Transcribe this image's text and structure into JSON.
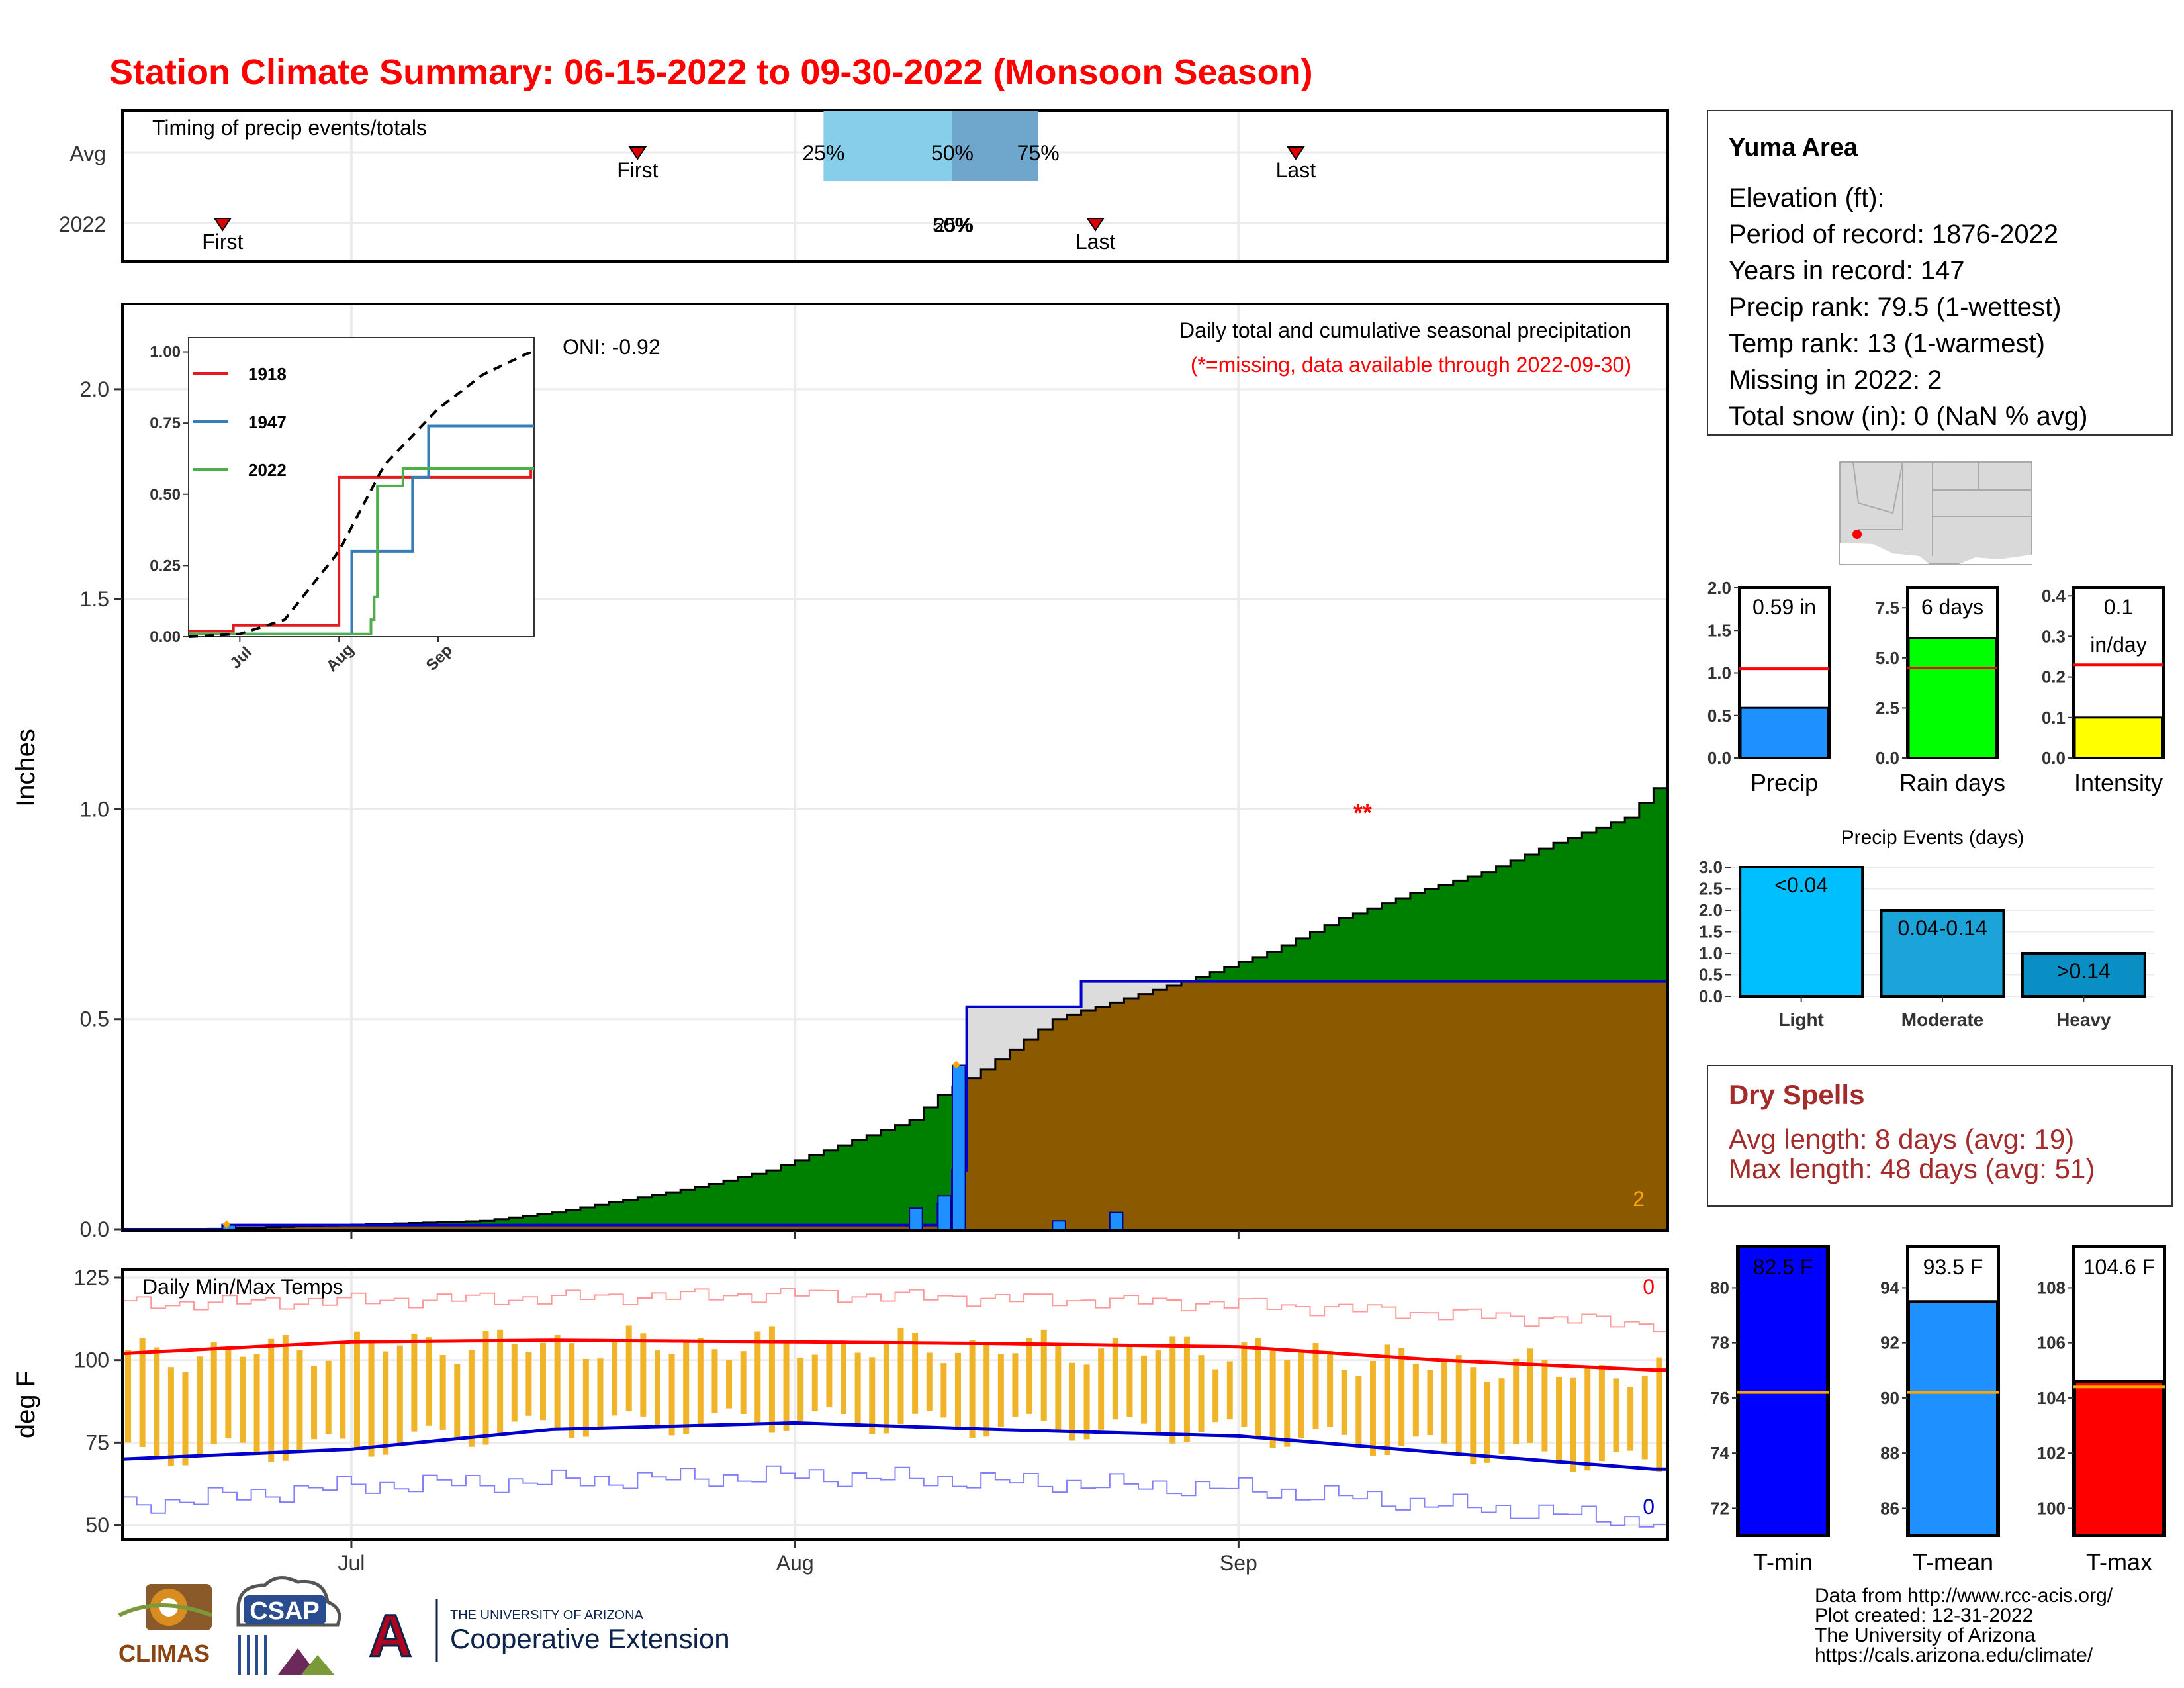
{
  "title": "Station Climate Summary: 06-15-2022 to 09-30-2022 (Monsoon Season)",
  "timing_panel": {
    "label": "Timing of precip events/totals",
    "rows": [
      "Avg",
      "2022"
    ],
    "marker_first": "First",
    "marker_last": "Last",
    "pct_labels": [
      "25%",
      "50%",
      "75%"
    ],
    "overlap_label_2022": "50%",
    "pct_2022_label": "25%",
    "avg_first": "2022-07-21",
    "avg_last": "2022-09-05",
    "avg_q25": "2022-08-03",
    "avg_q50": "2022-08-12",
    "avg_q75": "2022-08-18",
    "y2022_first": "2022-06-22",
    "y2022_last": "2022-08-22",
    "y2022_q": "2022-08-12"
  },
  "main_panel": {
    "oni": "ONI: -0.92",
    "subtitle": "Daily total and cumulative seasonal precipitation",
    "missing_note": "(*=missing, data available through 2022-09-30)",
    "ylabel": "Inches",
    "ytick_labels": [
      "0.0",
      "0.5",
      "1.0",
      "1.5",
      "2.0"
    ],
    "missing_marker": "**",
    "missing_count": "2",
    "colors": {
      "avg_fill": "#8b5a00",
      "above_fill": "#008000",
      "obs_fill": "#dcdcdc",
      "obs_line": "#0000cd",
      "daily_bar": "#1e90ff",
      "missing": "#ff0000",
      "missing_count": "#ffa500"
    }
  },
  "inset": {
    "legend": [
      "1918",
      "1947",
      "2022"
    ],
    "legend_colors": [
      "#e41a1c",
      "#377eb8",
      "#4daf4a"
    ],
    "ytick_labels": [
      "0.00",
      "0.25",
      "0.50",
      "0.75",
      "1.00"
    ],
    "xtick_labels": [
      "Jul",
      "Aug",
      "Sep"
    ]
  },
  "temp_panel": {
    "label": "Daily Min/Max Temps",
    "ylabel": "deg F",
    "ytick_labels": [
      "50",
      "75",
      "100",
      "125"
    ],
    "max_missing": "0",
    "min_missing": "0",
    "colors": {
      "range_bar": "#f0b429",
      "avg_max": "#ff0000",
      "avg_min": "#0000cd",
      "record_max": "#ff9999",
      "record_min": "#8080ff"
    }
  },
  "x_axis": {
    "labels": [
      "Jul",
      "Aug",
      "Sep"
    ]
  },
  "station": {
    "name": "Yuma Area",
    "lines": [
      "Elevation (ft):",
      "Period of record: 1876-2022",
      "Years in record: 147",
      "Precip rank: 79.5 (1-wettest)",
      "Temp rank: 13 (1-warmest)",
      "Missing in 2022: 2",
      "Total snow (in): 0 (NaN % avg)"
    ]
  },
  "summary_bars": [
    {
      "label": "Precip",
      "value_text": "0.59 in",
      "value": 0.59,
      "avg": 1.05,
      "ymax": 2.0,
      "ticks": [
        "0.0",
        "0.5",
        "1.0",
        "1.5",
        "2.0"
      ],
      "color": "#1e90ff"
    },
    {
      "label": "Rain days",
      "value_text": "6 days",
      "value": 6,
      "avg": 4.5,
      "ymax": 8.5,
      "ticks": [
        "0.0",
        "2.5",
        "5.0",
        "7.5"
      ],
      "color": "#00ff00"
    },
    {
      "label": "Intensity",
      "value_text": "0.1",
      "value_text2": "in/day",
      "value": 0.1,
      "avg": 0.23,
      "ymax": 0.42,
      "ticks": [
        "0.0",
        "0.1",
        "0.2",
        "0.3",
        "0.4"
      ],
      "color": "#ffff00"
    }
  ],
  "events_chart": {
    "title": "Precip Events (days)",
    "categories": [
      "Light",
      "Moderate",
      "Heavy"
    ],
    "bar_labels": [
      "<0.04",
      "0.04-0.14",
      ">0.14"
    ],
    "values": [
      3,
      2,
      1
    ],
    "ticks": [
      "0.0",
      "0.5",
      "1.0",
      "1.5",
      "2.0",
      "2.5",
      "3.0"
    ],
    "colors": [
      "#00bfff",
      "#1ca3d9",
      "#0a8fc4"
    ]
  },
  "dry_spells": {
    "title": "Dry Spells",
    "avg_line": "Avg length: 8 days (avg: 19)",
    "max_line": "Max length: 48 days (avg: 51)"
  },
  "temp_bars": [
    {
      "label": "T-min",
      "value_text": "82.5 F",
      "value": 82.5,
      "avg": 76.2,
      "ylim": [
        71,
        81.5
      ],
      "ticks": [
        "72",
        "74",
        "76",
        "78",
        "80"
      ],
      "color": "#0000ff"
    },
    {
      "label": "T-mean",
      "value_text": "93.5 F",
      "value": 93.5,
      "avg": 90.2,
      "ylim": [
        85,
        95.5
      ],
      "ticks": [
        "86",
        "88",
        "90",
        "92",
        "94"
      ],
      "color": "#1e90ff"
    },
    {
      "label": "T-max",
      "value_text": "104.6 F",
      "value": 104.6,
      "avg": 104.4,
      "ylim": [
        99,
        109.5
      ],
      "ticks": [
        "100",
        "102",
        "104",
        "106",
        "108"
      ],
      "color": "#ff0000"
    }
  ],
  "footer": {
    "lines": [
      "Data from http://www.rcc-acis.org/",
      "Plot created: 12-31-2022",
      "The University of Arizona",
      "https://cals.arizona.edu/climate/"
    ],
    "logo_climas": "CLIMAS",
    "logo_csap": "CSAP",
    "logo_ua_small": "THE UNIVERSITY OF ARIZONA",
    "logo_ua_big": "Cooperative Extension",
    "logo_ua_letter": "A"
  },
  "chart_data": [
    {
      "type": "area",
      "title": "Daily total and cumulative seasonal precipitation",
      "ylabel": "Inches",
      "ylim": [
        0,
        2.2
      ],
      "x_range": [
        "2022-06-15",
        "2022-09-30"
      ],
      "series": [
        {
          "name": "Average cumulative",
          "x": [
            "2022-06-15",
            "2022-06-20",
            "2022-06-25",
            "2022-06-30",
            "2022-07-05",
            "2022-07-10",
            "2022-07-15",
            "2022-07-20",
            "2022-07-25",
            "2022-07-30",
            "2022-08-04",
            "2022-08-09",
            "2022-08-11",
            "2022-08-14",
            "2022-08-19",
            "2022-08-24",
            "2022-08-29",
            "2022-09-03",
            "2022-09-08",
            "2022-09-13",
            "2022-09-18",
            "2022-09-23",
            "2022-09-28",
            "2022-09-30"
          ],
          "values": [
            0.0,
            0.0,
            0.005,
            0.01,
            0.015,
            0.02,
            0.04,
            0.07,
            0.1,
            0.14,
            0.2,
            0.26,
            0.32,
            0.38,
            0.5,
            0.55,
            0.6,
            0.66,
            0.74,
            0.8,
            0.85,
            0.92,
            0.98,
            1.05
          ]
        },
        {
          "name": "2022 cumulative",
          "x": [
            "2022-06-15",
            "2022-06-22",
            "2022-08-09",
            "2022-08-11",
            "2022-08-12",
            "2022-08-13",
            "2022-08-20",
            "2022-08-21",
            "2022-09-30"
          ],
          "values": [
            0.0,
            0.01,
            0.01,
            0.06,
            0.14,
            0.53,
            0.53,
            0.59,
            0.59
          ]
        },
        {
          "name": "2022 daily",
          "x": [
            "2022-06-22",
            "2022-08-09",
            "2022-08-11",
            "2022-08-12",
            "2022-08-19",
            "2022-08-23"
          ],
          "values": [
            0.01,
            0.05,
            0.08,
            0.39,
            0.02,
            0.04
          ]
        }
      ],
      "annotations": {
        "oni": "ONI: -0.92",
        "missing_days": 2
      }
    },
    {
      "type": "line",
      "title": "",
      "ylim": [
        0,
        1.05
      ],
      "x_range": [
        "2022-06-15",
        "2022-09-30"
      ],
      "series": [
        {
          "name": "1918",
          "x": [
            "2022-06-15",
            "2022-06-29",
            "2022-07-29",
            "2022-08-01",
            "2022-08-14",
            "2022-09-30"
          ],
          "values": [
            0.02,
            0.04,
            0.04,
            0.56,
            0.56,
            0.59
          ]
        },
        {
          "name": "1947",
          "x": [
            "2022-06-15",
            "2022-08-02",
            "2022-08-05",
            "2022-08-24",
            "2022-08-29",
            "2022-09-30"
          ],
          "values": [
            0.01,
            0.01,
            0.3,
            0.56,
            0.74,
            0.74
          ]
        },
        {
          "name": "2022",
          "x": [
            "2022-06-15",
            "2022-08-09",
            "2022-08-11",
            "2022-08-12",
            "2022-08-13",
            "2022-08-21",
            "2022-09-30"
          ],
          "values": [
            0.01,
            0.01,
            0.06,
            0.14,
            0.53,
            0.59,
            0.59
          ]
        },
        {
          "name": "",
          "x": [
            "2022-06-15",
            "2022-07-01",
            "2022-07-15",
            "2022-08-01",
            "2022-08-15",
            "2022-09-01",
            "2022-09-15",
            "2022-09-30"
          ],
          "values": [
            0.0,
            0.01,
            0.06,
            0.3,
            0.6,
            0.8,
            0.92,
            1.0
          ]
        }
      ]
    },
    {
      "type": "bar",
      "title": "Daily Min/Max Temps",
      "ylabel": "deg F",
      "ylim": [
        46,
        127
      ],
      "x_range": [
        "2022-06-15",
        "2022-09-30"
      ],
      "series": [
        {
          "name": "Average max",
          "x": [
            "2022-06-15",
            "2022-07-01",
            "2022-07-15",
            "2022-08-01",
            "2022-08-15",
            "2022-09-01",
            "2022-09-15",
            "2022-09-30"
          ],
          "values": [
            102,
            105.5,
            106,
            105.5,
            105,
            104,
            100,
            97
          ]
        },
        {
          "name": "Average min",
          "x": [
            "2022-06-15",
            "2022-07-01",
            "2022-07-15",
            "2022-08-01",
            "2022-08-15",
            "2022-09-01",
            "2022-09-15",
            "2022-09-30"
          ],
          "values": [
            70,
            73,
            79,
            81,
            79,
            77,
            72,
            67
          ]
        },
        {
          "name": "Record max",
          "x": [
            "2022-06-15",
            "2022-07-01",
            "2022-08-01",
            "2022-09-01",
            "2022-09-30"
          ],
          "values": [
            117,
            118,
            120,
            117,
            111
          ]
        },
        {
          "name": "Record min",
          "x": [
            "2022-06-15",
            "2022-07-01",
            "2022-08-01",
            "2022-09-01",
            "2022-09-30"
          ],
          "values": [
            56,
            62,
            65,
            61,
            51
          ]
        }
      ]
    },
    {
      "type": "bar",
      "title": "Precip Events (days)",
      "categories": [
        "Light",
        "Moderate",
        "Heavy"
      ],
      "values": [
        3,
        2,
        1
      ],
      "ylim": [
        0,
        3
      ]
    }
  ]
}
